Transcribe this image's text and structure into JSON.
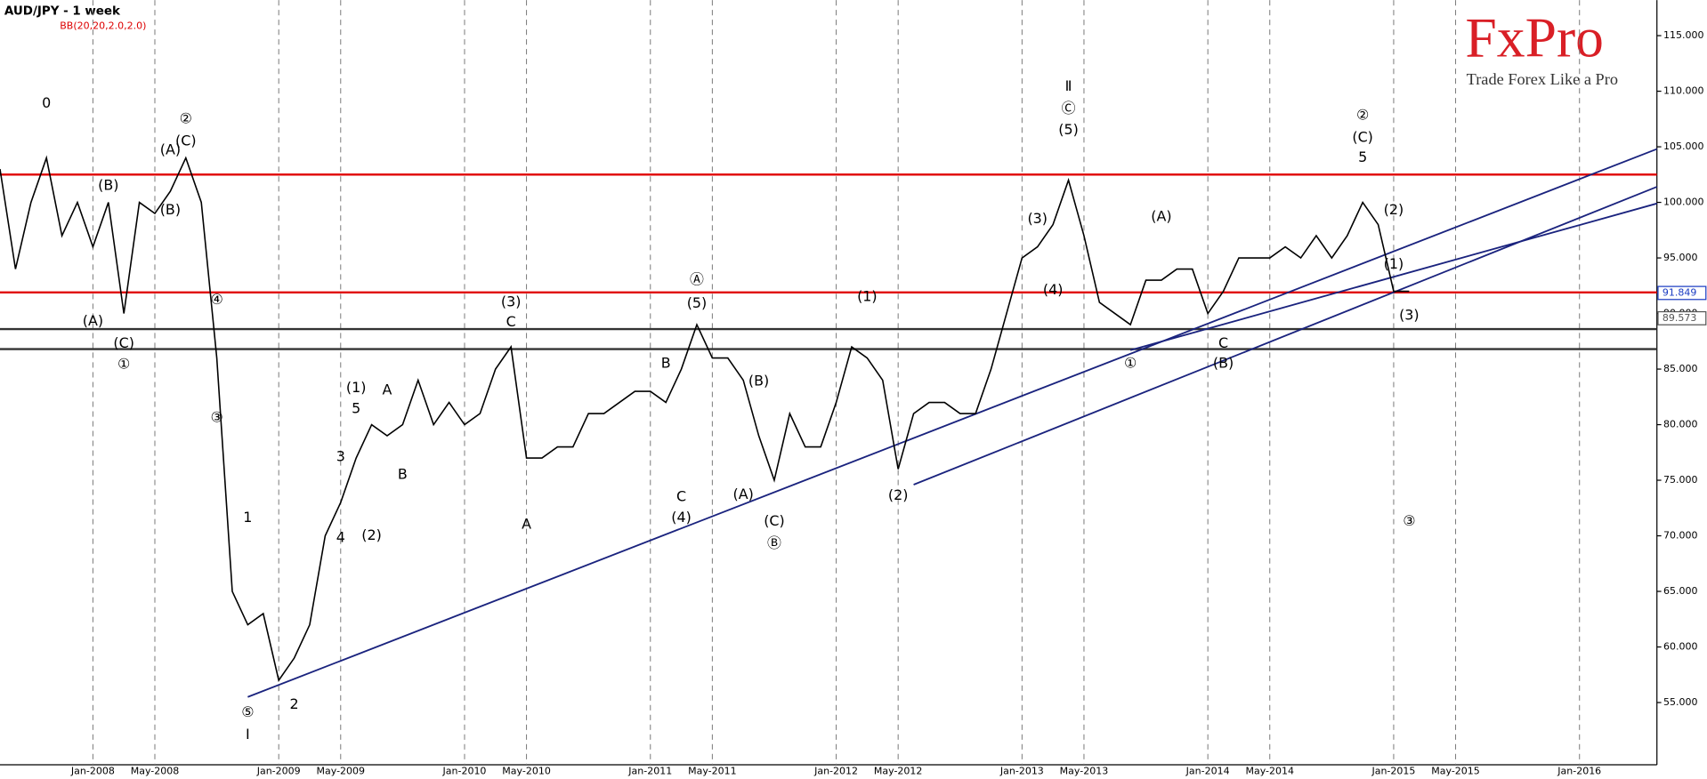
{
  "chart_data": {
    "type": "line",
    "title": "AUD/JPY - 1 week",
    "subtitle": "BB(20,20,2.0,2.0)",
    "x": [
      "2007-07",
      "2007-08",
      "2007-09",
      "2007-10",
      "2007-11",
      "2007-12",
      "2008-01",
      "2008-02",
      "2008-03",
      "2008-04",
      "2008-05",
      "2008-06",
      "2008-07",
      "2008-08",
      "2008-09",
      "2008-10",
      "2008-11",
      "2008-12",
      "2009-01",
      "2009-02",
      "2009-03",
      "2009-04",
      "2009-05",
      "2009-06",
      "2009-07",
      "2009-08",
      "2009-09",
      "2009-10",
      "2009-11",
      "2009-12",
      "2010-01",
      "2010-02",
      "2010-03",
      "2010-04",
      "2010-05",
      "2010-06",
      "2010-07",
      "2010-08",
      "2010-09",
      "2010-10",
      "2010-11",
      "2010-12",
      "2011-01",
      "2011-02",
      "2011-03",
      "2011-04",
      "2011-05",
      "2011-06",
      "2011-07",
      "2011-08",
      "2011-09",
      "2011-10",
      "2011-11",
      "2011-12",
      "2012-01",
      "2012-02",
      "2012-03",
      "2012-04",
      "2012-05",
      "2012-06",
      "2012-07",
      "2012-08",
      "2012-09",
      "2012-10",
      "2012-11",
      "2012-12",
      "2013-01",
      "2013-02",
      "2013-03",
      "2013-04",
      "2013-05",
      "2013-06",
      "2013-07",
      "2013-08",
      "2013-09",
      "2013-10",
      "2013-11",
      "2013-12",
      "2014-01",
      "2014-02",
      "2014-03",
      "2014-04",
      "2014-05",
      "2014-06",
      "2014-07",
      "2014-08",
      "2014-09",
      "2014-10",
      "2014-11",
      "2014-12",
      "2015-01",
      "2015-02"
    ],
    "values": [
      103,
      94,
      100,
      104,
      97,
      100,
      96,
      100,
      90,
      100,
      99,
      101,
      104,
      100,
      86,
      65,
      62,
      63,
      57,
      59,
      62,
      70,
      73,
      77,
      80,
      79,
      80,
      84,
      80,
      82,
      80,
      81,
      85,
      87,
      77,
      77,
      78,
      78,
      81,
      81,
      82,
      83,
      83,
      82,
      85,
      89,
      86,
      86,
      84,
      79,
      75,
      81,
      78,
      78,
      82,
      87,
      86,
      84,
      76,
      81,
      82,
      82,
      81,
      81,
      85,
      90,
      95,
      96,
      98,
      102,
      97,
      91,
      90,
      89,
      93,
      93,
      94,
      94,
      90,
      92,
      95,
      95,
      95,
      96,
      95,
      97,
      95,
      97,
      100,
      98,
      92,
      92
    ],
    "color": "#000000",
    "xlim": [
      "2007-07",
      "2016-06"
    ],
    "ylim": [
      49.4,
      118.2
    ],
    "xticks": [
      {
        "value": "2008-01",
        "label": "Jan-2008"
      },
      {
        "value": "2008-05",
        "label": "May-2008"
      },
      {
        "value": "2009-01",
        "label": "Jan-2009"
      },
      {
        "value": "2009-05",
        "label": "May-2009"
      },
      {
        "value": "2010-01",
        "label": "Jan-2010"
      },
      {
        "value": "2010-05",
        "label": "May-2010"
      },
      {
        "value": "2011-01",
        "label": "Jan-2011"
      },
      {
        "value": "2011-05",
        "label": "May-2011"
      },
      {
        "value": "2012-01",
        "label": "Jan-2012"
      },
      {
        "value": "2012-05",
        "label": "May-2012"
      },
      {
        "value": "2013-01",
        "label": "Jan-2013"
      },
      {
        "value": "2013-05",
        "label": "May-2013"
      },
      {
        "value": "2014-01",
        "label": "Jan-2014"
      },
      {
        "value": "2014-05",
        "label": "May-2014"
      },
      {
        "value": "2015-01",
        "label": "Jan-2015"
      },
      {
        "value": "2015-05",
        "label": "May-2015"
      },
      {
        "value": "2016-01",
        "label": "Jan-2016"
      }
    ],
    "yticks": [
      {
        "value": 55,
        "label": "55.000"
      },
      {
        "value": 60,
        "label": "60.000"
      },
      {
        "value": 65,
        "label": "65.000"
      },
      {
        "value": 70,
        "label": "70.000"
      },
      {
        "value": 75,
        "label": "75.000"
      },
      {
        "value": 80,
        "label": "80.000"
      },
      {
        "value": 85,
        "label": "85.000"
      },
      {
        "value": 90,
        "label": "90.000"
      },
      {
        "value": 95,
        "label": "95.000"
      },
      {
        "value": 100,
        "label": "100.000"
      },
      {
        "value": 105,
        "label": "105.000"
      },
      {
        "value": 110,
        "label": "110.000"
      },
      {
        "value": 115,
        "label": "115.000"
      }
    ],
    "grid": "x",
    "hlines": [
      {
        "value": 102.5,
        "color": "#e00000"
      },
      {
        "value": 91.9,
        "color": "#e00000"
      },
      {
        "value": 88.6,
        "color": "#333333"
      },
      {
        "value": 86.8,
        "color": "#333333"
      }
    ],
    "trendlines": [
      {
        "x": [
          "2008-11",
          "2016-06"
        ],
        "y": [
          55.5,
          104.8
        ],
        "color": "#1a237e"
      },
      {
        "x": [
          "2012-06",
          "2016-06"
        ],
        "y": [
          74.6,
          101.4
        ],
        "color": "#1a237e"
      },
      {
        "x": [
          "2013-08",
          "2016-06"
        ],
        "y": [
          86.7,
          99.9
        ],
        "color": "#1a237e"
      }
    ],
    "price_labels": [
      {
        "value": 91.849,
        "color": "#1a3bc2"
      },
      {
        "value": 89.573,
        "color": "#555555"
      }
    ],
    "annotations": [
      {
        "text": "0",
        "x": "2007-10",
        "y": 108.9
      },
      {
        "text": "(B)",
        "x": "2008-02",
        "y": 101.5
      },
      {
        "text": "(A)",
        "x": "2008-01",
        "y": 89.3
      },
      {
        "text": "(C)",
        "x": "2008-03",
        "y": 87.3
      },
      {
        "text": "①",
        "x": "2008-03",
        "y": 85.4
      },
      {
        "text": "②",
        "x": "2008-07",
        "y": 107.5
      },
      {
        "text": "(A)",
        "x": "2008-06",
        "y": 104.7
      },
      {
        "text": "(C)",
        "x": "2008-07",
        "y": 105.5
      },
      {
        "text": "(B)",
        "x": "2008-06",
        "y": 99.3
      },
      {
        "text": "④",
        "x": "2008-09",
        "y": 91.2
      },
      {
        "text": "③",
        "x": "2008-09",
        "y": 80.6
      },
      {
        "text": "1",
        "x": "2008-11",
        "y": 71.6
      },
      {
        "text": "⑤",
        "x": "2008-11",
        "y": 54.1
      },
      {
        "text": "I",
        "x": "2008-11",
        "y": 52.1
      },
      {
        "text": "2",
        "x": "2009-02",
        "y": 54.8
      },
      {
        "text": "(1)",
        "x": "2009-06",
        "y": 83.3
      },
      {
        "text": "5",
        "x": "2009-06",
        "y": 81.4
      },
      {
        "text": "A",
        "x": "2009-08",
        "y": 83.1
      },
      {
        "text": "B",
        "x": "2009-09",
        "y": 75.5
      },
      {
        "text": "3",
        "x": "2009-05",
        "y": 77.1
      },
      {
        "text": "4",
        "x": "2009-05",
        "y": 69.8
      },
      {
        "text": "(2)",
        "x": "2009-07",
        "y": 70.0
      },
      {
        "text": "(3)",
        "x": "2010-04",
        "y": 91.0
      },
      {
        "text": "C",
        "x": "2010-04",
        "y": 89.2
      },
      {
        "text": "A",
        "x": "2010-05",
        "y": 71.0
      },
      {
        "text": "Ⓐ",
        "x": "2011-04",
        "y": 93.0
      },
      {
        "text": "(5)",
        "x": "2011-04",
        "y": 90.9
      },
      {
        "text": "B",
        "x": "2011-02",
        "y": 85.5
      },
      {
        "text": "C",
        "x": "2011-03",
        "y": 73.5
      },
      {
        "text": "(4)",
        "x": "2011-03",
        "y": 71.6
      },
      {
        "text": "(B)",
        "x": "2011-08",
        "y": 83.9
      },
      {
        "text": "(A)",
        "x": "2011-07",
        "y": 73.7
      },
      {
        "text": "(C)",
        "x": "2011-09",
        "y": 71.3
      },
      {
        "text": "Ⓑ",
        "x": "2011-09",
        "y": 69.3
      },
      {
        "text": "(1)",
        "x": "2012-03",
        "y": 91.5
      },
      {
        "text": "(2)",
        "x": "2012-05",
        "y": 73.6
      },
      {
        "text": "Ⅱ",
        "x": "2013-04",
        "y": 110.4
      },
      {
        "text": "Ⓒ",
        "x": "2013-04",
        "y": 108.4
      },
      {
        "text": "(5)",
        "x": "2013-04",
        "y": 106.5
      },
      {
        "text": "(3)",
        "x": "2013-02",
        "y": 98.5
      },
      {
        "text": "(4)",
        "x": "2013-03",
        "y": 92.1
      },
      {
        "text": "①",
        "x": "2013-08",
        "y": 85.5
      },
      {
        "text": "(A)",
        "x": "2013-10",
        "y": 98.7
      },
      {
        "text": "C",
        "x": "2014-02",
        "y": 87.3
      },
      {
        "text": "(B)",
        "x": "2014-02",
        "y": 85.5
      },
      {
        "text": "②",
        "x": "2014-11",
        "y": 107.8
      },
      {
        "text": "(C)",
        "x": "2014-11",
        "y": 105.8
      },
      {
        "text": "5",
        "x": "2014-11",
        "y": 104.0
      },
      {
        "text": "(2)",
        "x": "2015-01",
        "y": 99.3
      },
      {
        "text": "(1)",
        "x": "2015-01",
        "y": 94.4
      },
      {
        "text": "(3)",
        "x": "2015-02",
        "y": 89.8
      },
      {
        "text": "③",
        "x": "2015-02",
        "y": 71.3
      }
    ]
  },
  "logo": {
    "brand": "FxPro",
    "tagline": "Trade Forex Like a Pro"
  }
}
